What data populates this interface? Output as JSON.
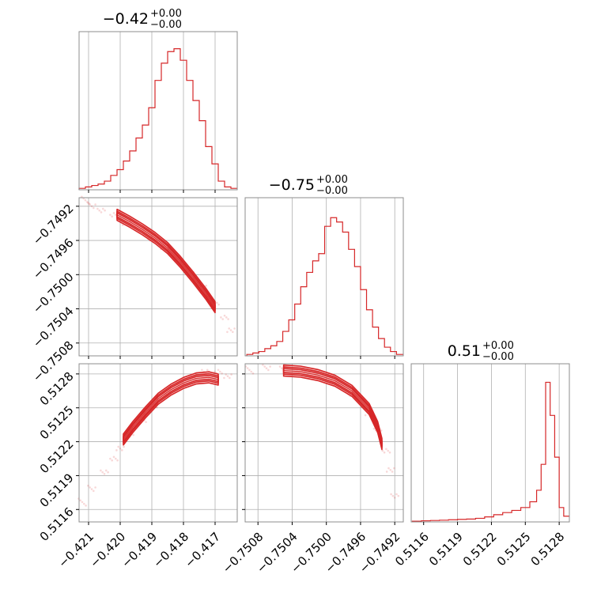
{
  "colors": {
    "series": "#d62728",
    "fill": "#f4a6a6",
    "grid": "#b0b0b0",
    "frame": "#8c8c8c"
  },
  "chart_data": {
    "type": "corner",
    "parameters": [
      {
        "title": "−0.42",
        "sup": "+0.00",
        "sub": "−0.00"
      },
      {
        "title": "−0.75",
        "sup": "+0.00",
        "sub": "−0.00"
      },
      {
        "title": "0.51",
        "sup": "+0.00",
        "sub": "−0.00"
      }
    ],
    "axes": {
      "x0": {
        "range": [
          -0.4213,
          -0.4163
        ],
        "ticks": [
          -0.421,
          -0.42,
          -0.419,
          -0.418,
          -0.417
        ],
        "tick_labels": [
          "−0.421",
          "−0.420",
          "−0.419",
          "−0.418",
          "−0.417"
        ]
      },
      "x1": {
        "range": [
          -0.75095,
          -0.7491
        ],
        "ticks": [
          -0.7508,
          -0.7504,
          -0.75,
          -0.7496,
          -0.7492
        ],
        "tick_labels": [
          "−0.7508",
          "−0.7504",
          "−0.7500",
          "−0.7496",
          "−0.7492"
        ]
      },
      "x2": {
        "range": [
          0.51149,
          0.51289
        ],
        "ticks": [
          0.5116,
          0.5119,
          0.5122,
          0.5125,
          0.5128
        ],
        "tick_labels": [
          "0.5116",
          "0.5119",
          "0.5122",
          "0.5125",
          "0.5128"
        ]
      }
    },
    "hist_0": {
      "x": [
        -0.4213,
        -0.4211,
        -0.4209,
        -0.4207,
        -0.4205,
        -0.4203,
        -0.4201,
        -0.4199,
        -0.4197,
        -0.4195,
        -0.4193,
        -0.4191,
        -0.4189,
        -0.4187,
        -0.4185,
        -0.4183,
        -0.4181,
        -0.4179,
        -0.4177,
        -0.4175,
        -0.4173,
        -0.4171,
        -0.4169,
        -0.4167,
        -0.4165
      ],
      "y": [
        0.01,
        0.02,
        0.03,
        0.04,
        0.06,
        0.1,
        0.14,
        0.2,
        0.27,
        0.36,
        0.45,
        0.57,
        0.76,
        0.88,
        0.96,
        0.98,
        0.9,
        0.76,
        0.62,
        0.48,
        0.3,
        0.18,
        0.06,
        0.02,
        0.01
      ]
    },
    "hist_1": {
      "x": [
        -0.75093,
        -0.75086,
        -0.75079,
        -0.75072,
        -0.75065,
        -0.75058,
        -0.75051,
        -0.75044,
        -0.75037,
        -0.7503,
        -0.75023,
        -0.75016,
        -0.75009,
        -0.75002,
        -0.74995,
        -0.74988,
        -0.74981,
        -0.74974,
        -0.74967,
        -0.7496,
        -0.74953,
        -0.74946,
        -0.74939,
        -0.74932,
        -0.74925,
        -0.74918
      ],
      "y": [
        0.01,
        0.02,
        0.03,
        0.05,
        0.07,
        0.1,
        0.17,
        0.25,
        0.36,
        0.48,
        0.58,
        0.66,
        0.71,
        0.9,
        0.96,
        0.93,
        0.86,
        0.74,
        0.62,
        0.46,
        0.32,
        0.2,
        0.12,
        0.06,
        0.03,
        0.01
      ]
    },
    "hist_2": {
      "x": [
        0.5115,
        0.51158,
        0.51166,
        0.51174,
        0.51182,
        0.5119,
        0.51198,
        0.51206,
        0.51214,
        0.51222,
        0.5123,
        0.51238,
        0.51246,
        0.51254,
        0.5126,
        0.51264,
        0.51268,
        0.51272,
        0.51276,
        0.5128,
        0.51284
      ],
      "y": [
        0.005,
        0.008,
        0.01,
        0.012,
        0.015,
        0.018,
        0.02,
        0.025,
        0.035,
        0.05,
        0.065,
        0.08,
        0.1,
        0.14,
        0.22,
        0.4,
        0.97,
        0.74,
        0.45,
        0.1,
        0.04
      ]
    },
    "scatter_10": {
      "x": [
        -0.4211,
        -0.4209,
        -0.4206,
        -0.4202,
        -0.4198,
        -0.4194,
        -0.419,
        -0.4186,
        -0.4182,
        -0.4178,
        -0.4174,
        -0.417,
        -0.4167,
        -0.4165
      ],
      "y": [
        -0.74915,
        -0.7492,
        -0.74925,
        -0.7493,
        -0.7494,
        -0.74948,
        -0.74958,
        -0.74968,
        -0.7498,
        -0.74995,
        -0.75015,
        -0.75035,
        -0.7505,
        -0.75065
      ]
    },
    "contour_10": {
      "x": [
        -0.4201,
        -0.4197,
        -0.4193,
        -0.4189,
        -0.4185,
        -0.4181,
        -0.4177,
        -0.4173,
        -0.417
      ],
      "y": [
        -0.7493,
        -0.74938,
        -0.74947,
        -0.74957,
        -0.74969,
        -0.74985,
        -0.75003,
        -0.75022,
        -0.75038
      ]
    },
    "scatter_20": {
      "x": [
        -0.4212,
        -0.4209,
        -0.4205,
        -0.4202,
        -0.42,
        -0.4197,
        -0.4193,
        -0.4189,
        -0.4185,
        -0.4181,
        -0.4177,
        -0.4173,
        -0.4169,
        -0.4166
      ],
      "y": [
        0.51165,
        0.51178,
        0.51193,
        0.51205,
        0.51214,
        0.51226,
        0.51239,
        0.51252,
        0.51262,
        0.51272,
        0.51278,
        0.51282,
        0.51282,
        0.51278
      ]
    },
    "contour_20": {
      "x": [
        -0.4199,
        -0.4196,
        -0.4192,
        -0.4188,
        -0.4184,
        -0.418,
        -0.4176,
        -0.4172,
        -0.4169
      ],
      "y": [
        0.51222,
        0.51233,
        0.51246,
        0.51258,
        0.51266,
        0.51272,
        0.51276,
        0.51277,
        0.51275
      ]
    },
    "scatter_21": {
      "x": [
        -0.7509,
        -0.7507,
        -0.7505,
        -0.7503,
        -0.7501,
        -0.7499,
        -0.7497,
        -0.7495,
        -0.7494,
        -0.7493,
        -0.74925,
        -0.7492
      ],
      "y": [
        0.51282,
        0.51285,
        0.51285,
        0.51283,
        0.51279,
        0.51272,
        0.51262,
        0.51245,
        0.5123,
        0.51212,
        0.51195,
        0.51172
      ]
    },
    "contour_21": {
      "x": [
        -0.7505,
        -0.7503,
        -0.7501,
        -0.7499,
        -0.7497,
        -0.7495,
        -0.7494,
        -0.74935
      ],
      "y": [
        0.51283,
        0.51282,
        0.51279,
        0.51274,
        0.51265,
        0.51249,
        0.51233,
        0.51218
      ]
    }
  }
}
